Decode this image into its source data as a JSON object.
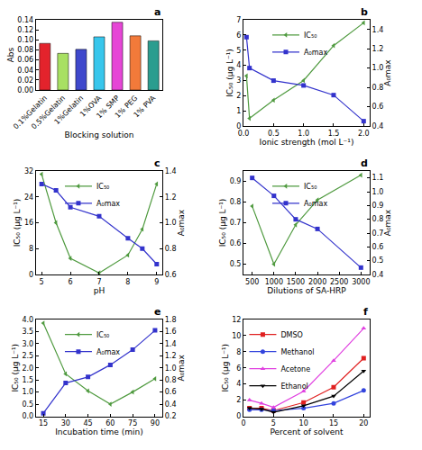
{
  "chart_data": [
    {
      "type": "bar",
      "annotations": [
        "a"
      ],
      "x_label": "Blocking solution",
      "y_label": "Abs",
      "categories": [
        "0.1%Gelatin",
        "0.5%Gelatin",
        "1%Gelatin",
        "1%OVA",
        "1% SMP",
        "1% PEG",
        "1% PVA"
      ],
      "values": [
        0.093,
        0.073,
        0.081,
        0.106,
        0.135,
        0.108,
        0.098
      ],
      "colors": [
        "#e3232c",
        "#a8e063",
        "#3f48cc",
        "#38c6ec",
        "#e646d6",
        "#f27a3a",
        "#2a9d8f"
      ],
      "ylim": [
        0,
        0.14
      ],
      "yticks": [
        {
          "value": 0,
          "label": "0.00"
        },
        0.02,
        0.04,
        0.06,
        0.08,
        {
          "value": 0.1,
          "label": "0.10"
        },
        0.12,
        0.14
      ]
    },
    {
      "type": "line",
      "annotations": [
        "b"
      ],
      "x_label": "Ionic strength (mol L⁻¹)",
      "y_label": "IC₅₀ (μg L⁻¹)",
      "y2_label": "A₀max",
      "x": [
        0.05,
        0.1,
        0.5,
        1,
        1.5,
        2
      ],
      "series": [
        {
          "name": "IC₅₀",
          "color": "#4f9a3f",
          "marker": "triangle-left",
          "values": [
            3.3,
            0.5,
            1.7,
            3.0,
            5.3,
            6.8
          ]
        },
        {
          "name": "A₀max",
          "color": "#3333cc",
          "marker": "square",
          "axis": "y2",
          "values": [
            1.32,
            1.0,
            0.87,
            0.82,
            0.72,
            0.45
          ]
        }
      ],
      "xlim": [
        0,
        2.1
      ],
      "xticks": [
        {
          "value": 0,
          "label": "0.0"
        },
        0.5,
        {
          "value": 1,
          "label": "1.0"
        },
        1.5,
        {
          "value": 2,
          "label": "2.0"
        }
      ],
      "ylim": [
        0,
        7
      ],
      "yticks": [
        0,
        1,
        2,
        3,
        4,
        5,
        6,
        7
      ],
      "y2lim": [
        0.4,
        1.5
      ],
      "y2ticks": [
        0.4,
        0.6,
        0.8,
        {
          "value": 1,
          "label": "1.0"
        },
        1.2,
        1.4
      ],
      "legend": "top"
    },
    {
      "type": "line",
      "annotations": [
        "c"
      ],
      "x_label": "pH",
      "y_label": "IC₅₀ (μg L⁻¹)",
      "y2_label": "A₀max",
      "x": [
        5,
        5.5,
        6,
        7,
        8,
        8.5,
        9
      ],
      "series": [
        {
          "name": "IC₅₀",
          "color": "#4f9a3f",
          "marker": "triangle-left",
          "values": [
            31,
            16,
            5,
            0.5,
            6,
            14,
            28
          ]
        },
        {
          "name": "A₀max",
          "color": "#3333cc",
          "marker": "square",
          "axis": "y2",
          "values": [
            1.3,
            1.25,
            1.12,
            1.05,
            0.88,
            0.8,
            0.68
          ]
        }
      ],
      "xlim": [
        4.8,
        9.2
      ],
      "xticks": [
        5,
        6,
        7,
        8,
        9
      ],
      "ylim": [
        0,
        32
      ],
      "yticks": [
        0,
        8,
        16,
        24,
        32
      ],
      "y2lim": [
        0.6,
        1.4
      ],
      "y2ticks": [
        0.6,
        0.8,
        {
          "value": 1,
          "label": "1.0"
        },
        1.2,
        1.4
      ],
      "legend": "top"
    },
    {
      "type": "line",
      "annotations": [
        "d"
      ],
      "x_label": "Dilutions of SA-HRP",
      "y_label": "IC₅₀ (μg L⁻¹)",
      "y2_label": "A₀max",
      "x": [
        500,
        1000,
        1500,
        2000,
        3000
      ],
      "series": [
        {
          "name": "IC₅₀",
          "color": "#4f9a3f",
          "marker": "triangle-left",
          "values": [
            0.78,
            0.5,
            0.69,
            0.81,
            0.93
          ]
        },
        {
          "name": "A₀max",
          "color": "#3333cc",
          "marker": "square",
          "axis": "y2",
          "values": [
            1.1,
            0.97,
            0.8,
            0.73,
            0.45
          ]
        }
      ],
      "xlim": [
        300,
        3200
      ],
      "xticks": [
        500,
        1000,
        1500,
        2000,
        2500,
        3000
      ],
      "ylim": [
        0.45,
        0.95
      ],
      "yticks": [
        0.5,
        0.6,
        0.7,
        0.8,
        0.9
      ],
      "y2lim": [
        0.4,
        1.15
      ],
      "y2ticks": [
        0.4,
        0.5,
        0.6,
        0.7,
        0.8,
        0.9,
        {
          "value": 1,
          "label": "1.0"
        },
        1.1
      ],
      "legend": "top"
    },
    {
      "type": "line",
      "annotations": [
        "e"
      ],
      "x_label": "Incubation time (min)",
      "y_label": "IC₅₀ (μg L⁻¹)",
      "y2_label": "A₀max",
      "x": [
        15,
        30,
        45,
        60,
        75,
        90
      ],
      "series": [
        {
          "name": "IC₅₀",
          "color": "#4f9a3f",
          "marker": "triangle-left",
          "values": [
            3.85,
            1.75,
            1.05,
            0.5,
            1.0,
            1.55
          ]
        },
        {
          "name": "A₀max",
          "color": "#3333cc",
          "marker": "square",
          "axis": "y2",
          "values": [
            0.25,
            0.75,
            0.85,
            1.05,
            1.3,
            1.62
          ]
        }
      ],
      "xlim": [
        10,
        95
      ],
      "xticks": [
        15,
        30,
        45,
        60,
        75,
        90
      ],
      "ylim": [
        0,
        4
      ],
      "yticks": [
        {
          "value": 0,
          "label": "0.0"
        },
        0.5,
        {
          "value": 1,
          "label": "1.0"
        },
        1.5,
        {
          "value": 2,
          "label": "2.0"
        },
        2.5,
        {
          "value": 3,
          "label": "3.0"
        },
        3.5,
        {
          "value": 4,
          "label": "4.0"
        }
      ],
      "y2lim": [
        0.2,
        1.8
      ],
      "y2ticks": [
        0.2,
        0.4,
        0.6,
        0.8,
        {
          "value": 1,
          "label": "1.0"
        },
        1.2,
        1.4,
        1.6,
        1.8
      ],
      "legend": "top"
    },
    {
      "type": "line",
      "annotations": [
        "f"
      ],
      "x_label": "Percent of solvent",
      "y_label": "IC₅₀ (μg L⁻¹)",
      "x": [
        1,
        3,
        5,
        10,
        15,
        20
      ],
      "series": [
        {
          "name": "DMSO",
          "color": "#e02020",
          "marker": "square",
          "values": [
            1.0,
            1.0,
            0.7,
            1.7,
            3.6,
            7.2
          ]
        },
        {
          "name": "Methanol",
          "color": "#3344dd",
          "marker": "circle",
          "values": [
            0.8,
            0.8,
            0.7,
            1.0,
            1.6,
            3.2
          ]
        },
        {
          "name": "Acetone",
          "color": "#e040e0",
          "marker": "triangle-up",
          "values": [
            2.0,
            1.6,
            1.1,
            3.1,
            6.9,
            10.9
          ]
        },
        {
          "name": "Ethanol",
          "color": "#000000",
          "marker": "triangle-down",
          "values": [
            1.0,
            0.9,
            0.5,
            1.3,
            2.5,
            5.6
          ]
        }
      ],
      "xlim": [
        0,
        21
      ],
      "xticks": [
        0,
        5,
        10,
        15,
        20
      ],
      "ylim": [
        0,
        12
      ],
      "yticks": [
        0,
        2,
        4,
        6,
        8,
        10,
        12
      ],
      "legend": "top left"
    }
  ]
}
